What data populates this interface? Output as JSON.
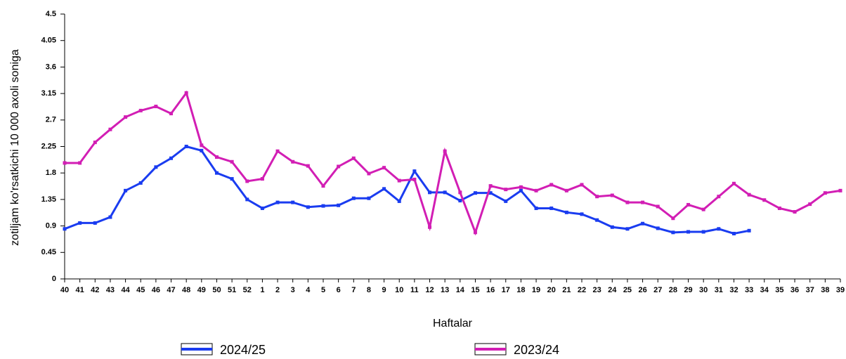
{
  "chart_data": {
    "type": "line",
    "y_label": "zotiljam ko'rsatkichi 10 000 axoli soniga",
    "x_label": "Haftalar",
    "categories": [
      "40",
      "41",
      "42",
      "43",
      "44",
      "45",
      "46",
      "47",
      "48",
      "49",
      "50",
      "51",
      "52",
      "1",
      "2",
      "3",
      "4",
      "5",
      "6",
      "7",
      "8",
      "9",
      "10",
      "11",
      "12",
      "13",
      "14",
      "15",
      "16",
      "17",
      "18",
      "19",
      "20",
      "21",
      "22",
      "23",
      "24",
      "25",
      "26",
      "27",
      "28",
      "29",
      "30",
      "31",
      "32",
      "33",
      "34",
      "35",
      "36",
      "37",
      "38",
      "39"
    ],
    "ylim": [
      0,
      4.5
    ],
    "yticks": [
      0,
      0.45,
      0.9,
      1.35,
      1.8,
      2.25,
      2.7,
      3.15,
      3.6,
      4.05,
      4.5
    ],
    "legend": "bottom",
    "series": [
      {
        "name": "2024/25",
        "color": "#1a3cf0",
        "values": [
          0.85,
          0.95,
          0.95,
          1.05,
          1.5,
          1.63,
          1.9,
          2.05,
          2.25,
          2.18,
          1.8,
          1.7,
          1.35,
          1.2,
          1.3,
          1.3,
          1.22,
          1.24,
          1.25,
          1.37,
          1.37,
          1.53,
          1.32,
          1.83,
          1.47,
          1.47,
          1.33,
          1.46,
          1.46,
          1.32,
          1.5,
          1.2,
          1.2,
          1.13,
          1.1,
          1.0,
          0.88,
          0.85,
          0.94,
          0.86,
          0.79,
          0.8,
          0.8,
          0.85,
          0.77,
          0.82,
          null,
          null,
          null,
          null,
          null,
          null
        ]
      },
      {
        "name": "2023/24",
        "color": "#d21eb4",
        "values": [
          1.97,
          1.97,
          2.32,
          2.54,
          2.75,
          2.86,
          2.93,
          2.81,
          3.16,
          2.27,
          2.07,
          1.99,
          1.66,
          1.7,
          2.17,
          1.99,
          1.92,
          1.58,
          1.91,
          2.05,
          1.79,
          1.89,
          1.67,
          1.69,
          0.88,
          2.17,
          1.47,
          0.79,
          1.58,
          1.52,
          1.56,
          1.5,
          1.6,
          1.5,
          1.6,
          1.4,
          1.42,
          1.3,
          1.3,
          1.23,
          1.03,
          1.26,
          1.18,
          1.4,
          1.62,
          1.43,
          1.34,
          1.2,
          1.14,
          1.27,
          1.46,
          1.5
        ]
      }
    ]
  }
}
